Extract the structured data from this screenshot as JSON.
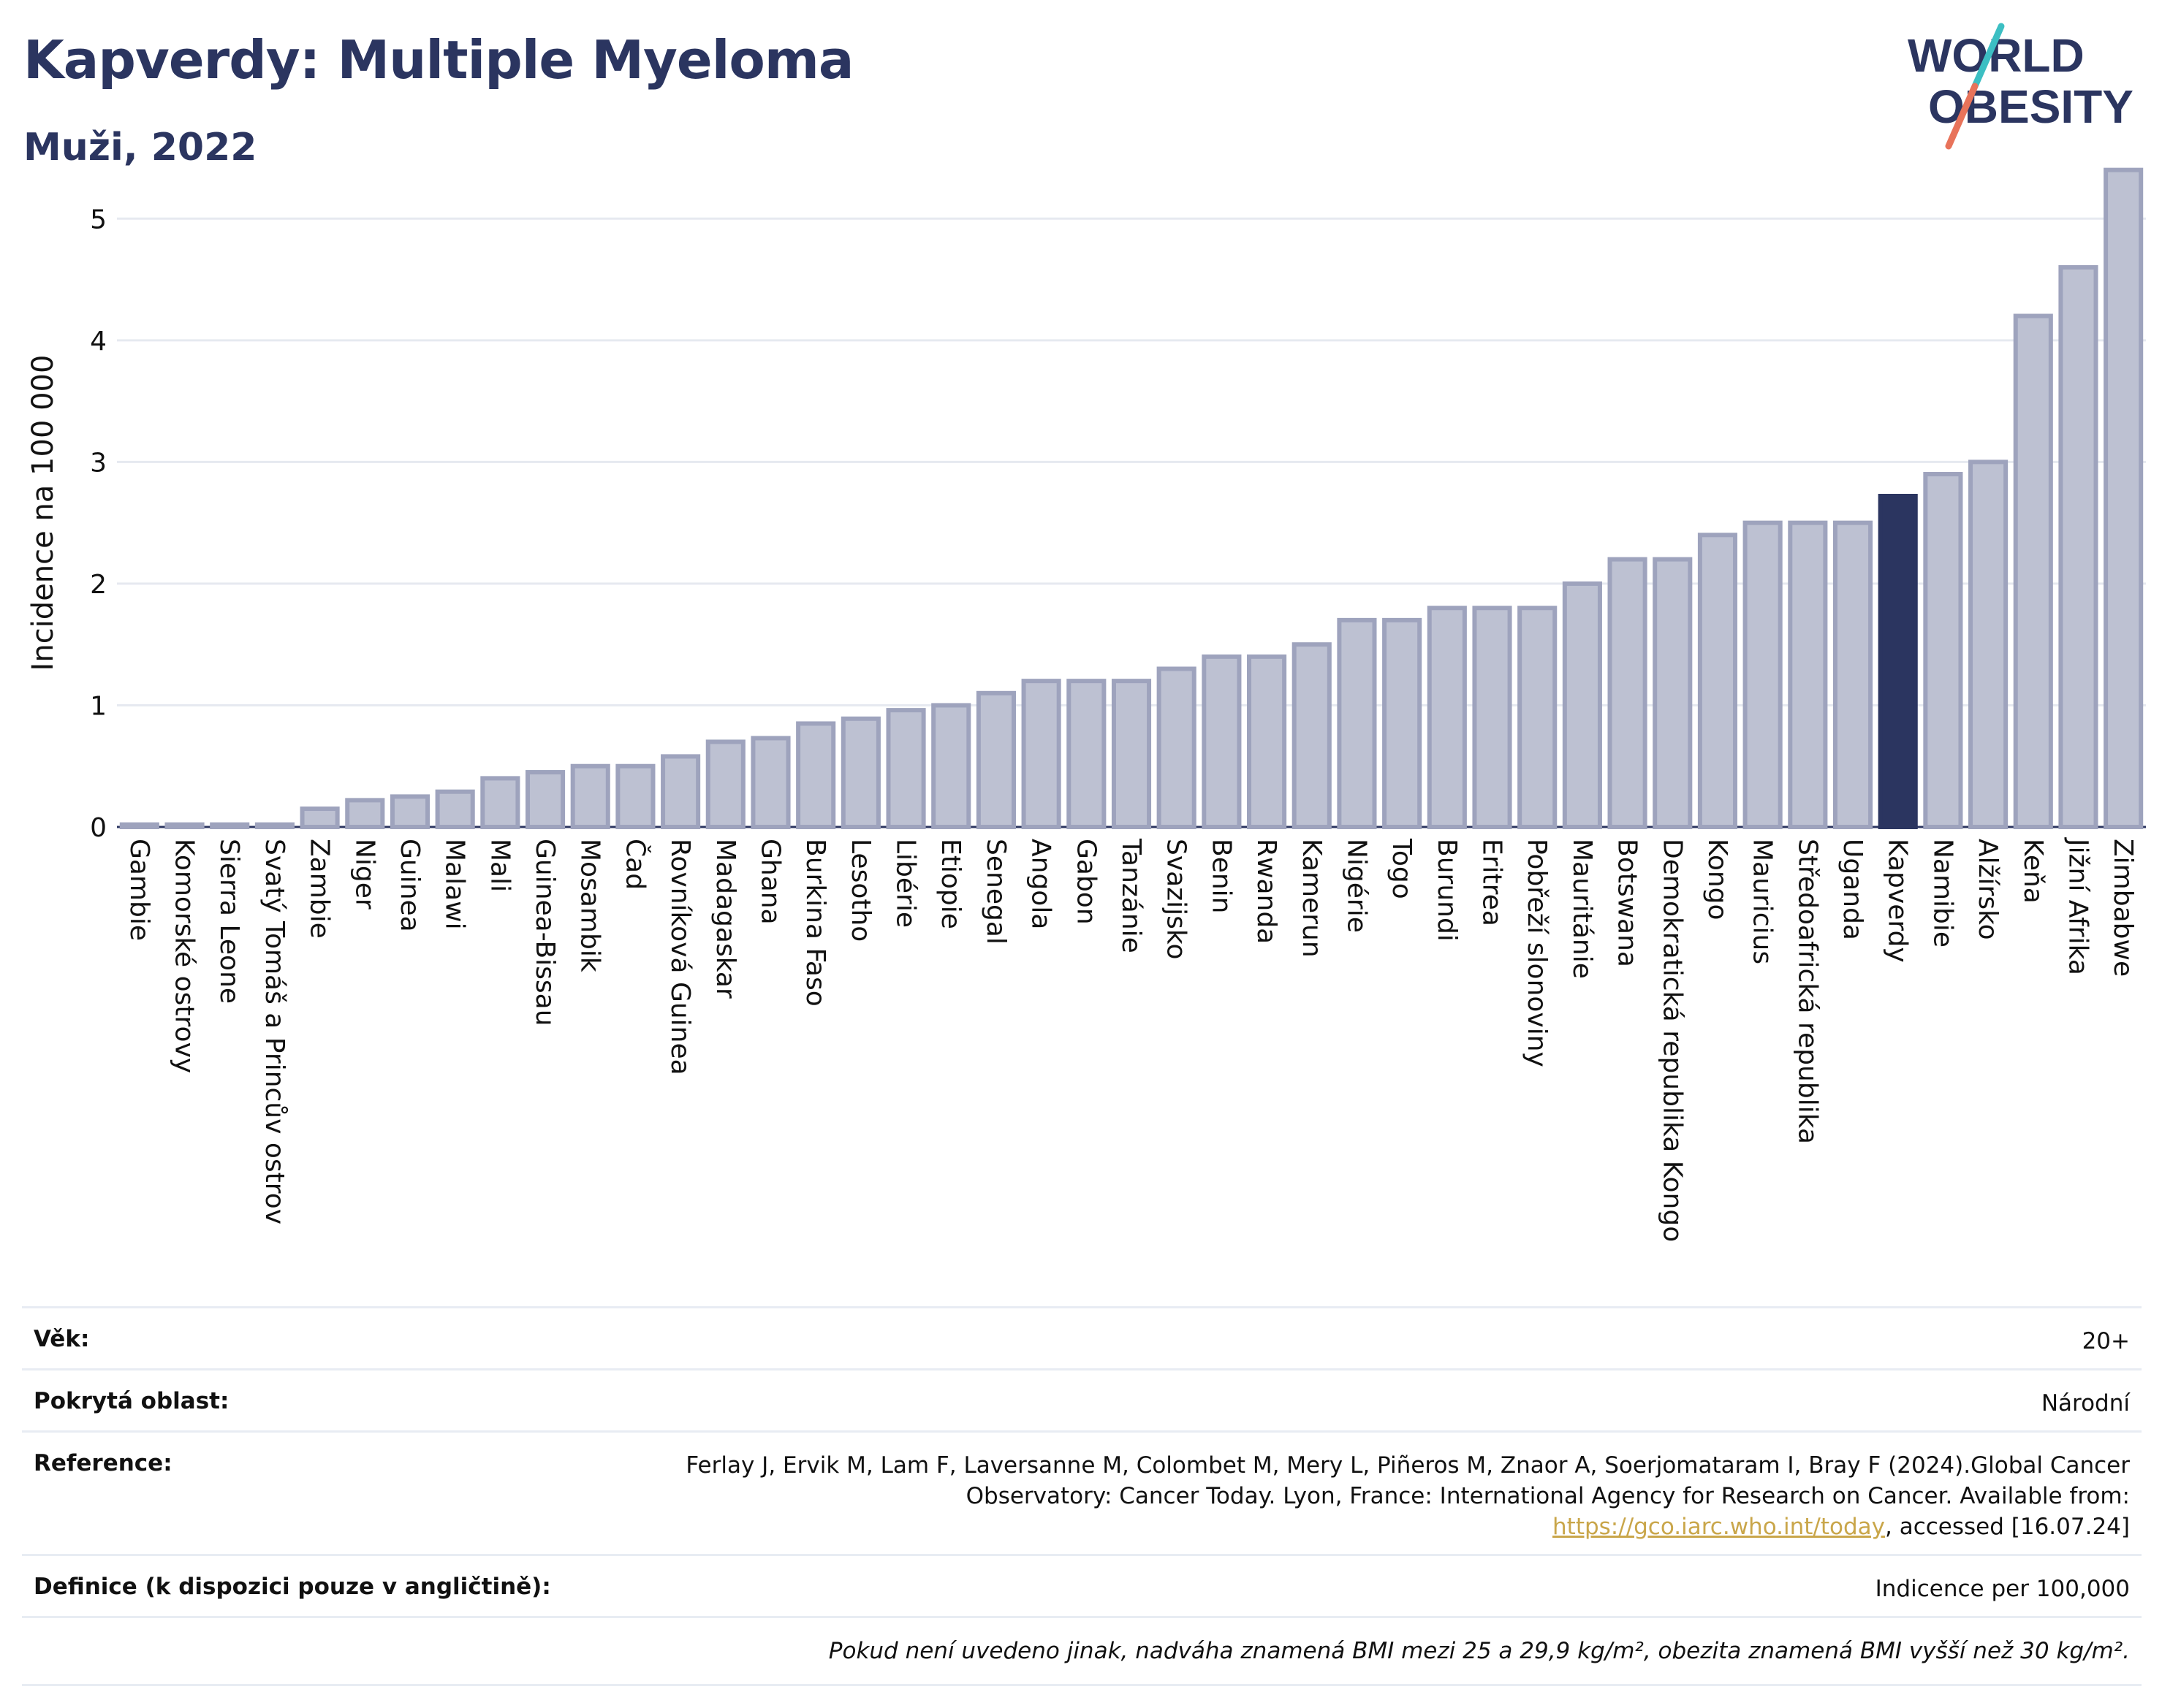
{
  "header": {
    "title": "Kapverdy: Multiple Myeloma",
    "subtitle": "Muži, 2022"
  },
  "logo": {
    "line1": "WORLD",
    "line2": "OBESITY"
  },
  "colors": {
    "title": "#2b3560",
    "bar_default": "#bdc1d2",
    "bar_default_stroke": "#9ea3bd",
    "bar_highlight": "#2b3560",
    "logo_teal": "#3cbfc3",
    "logo_coral": "#e8735a",
    "link": "#c9a64a"
  },
  "chart_data": {
    "type": "bar",
    "ylabel": "Incidence na 100 000",
    "xlabel": "",
    "ylim": [
      0,
      5.5
    ],
    "yticks": [
      0,
      1,
      2,
      3,
      4,
      5
    ],
    "grid": true,
    "highlight": "Kapverdy",
    "categories": [
      "Gambie",
      "Komorské ostrovy",
      "Sierra Leone",
      "Svatý Tomáš a Princův ostrov",
      "Zambie",
      "Niger",
      "Guinea",
      "Malawi",
      "Mali",
      "Guinea-Bissau",
      "Mosambik",
      "Čad",
      "Rovníková Guinea",
      "Madagaskar",
      "Ghana",
      "Burkina Faso",
      "Lesotho",
      "Libérie",
      "Etiopie",
      "Senegal",
      "Angola",
      "Gabon",
      "Tanzánie",
      "Svazijsko",
      "Benin",
      "Rwanda",
      "Kamerun",
      "Nigérie",
      "Togo",
      "Burundi",
      "Eritrea",
      "Pobřeží slonoviny",
      "Mauritánie",
      "Botswana",
      "Demokratická republika Kongo",
      "Kongo",
      "Mauricius",
      "Středoafrická republika",
      "Uganda",
      "Kapverdy",
      "Namibie",
      "Alžírsko",
      "Keňa",
      "Jižní Afrika",
      "Zimbabwe"
    ],
    "values": [
      0.02,
      0.02,
      0.02,
      0.02,
      0.15,
      0.22,
      0.25,
      0.29,
      0.4,
      0.45,
      0.5,
      0.5,
      0.58,
      0.7,
      0.73,
      0.85,
      0.89,
      0.96,
      1.0,
      1.1,
      1.2,
      1.2,
      1.2,
      1.3,
      1.4,
      1.4,
      1.5,
      1.7,
      1.7,
      1.8,
      1.8,
      1.8,
      2.0,
      2.2,
      2.2,
      2.4,
      2.5,
      2.5,
      2.5,
      2.72,
      2.9,
      3.0,
      4.2,
      4.6,
      5.4
    ]
  },
  "info": {
    "rows": [
      {
        "label": "Věk:",
        "value": "20+"
      },
      {
        "label": "Pokrytá oblast:",
        "value": "Národní"
      }
    ],
    "reference": {
      "label": "Reference:",
      "text_before": "Ferlay J, Ervik M, Lam F, Laversanne M, Colombet M, Mery L, Piñeros M, Znaor A, Soerjomataram I, Bray F (2024).Global Cancer Observatory: Cancer Today. Lyon, France: International Agency for Research on Cancer. Available from: ",
      "link": "https://gco.iarc.who.int/today",
      "text_after": ", accessed [16.07.24]"
    },
    "definition": {
      "label": "Definice (k dispozici pouze v angličtině):",
      "value": "Indicence per 100,000"
    },
    "note": "Pokud není uvedeno jinak, nadváha znamená BMI mezi 25 a 29,9 kg/m², obezita znamená BMI vyšší než 30 kg/m²."
  }
}
